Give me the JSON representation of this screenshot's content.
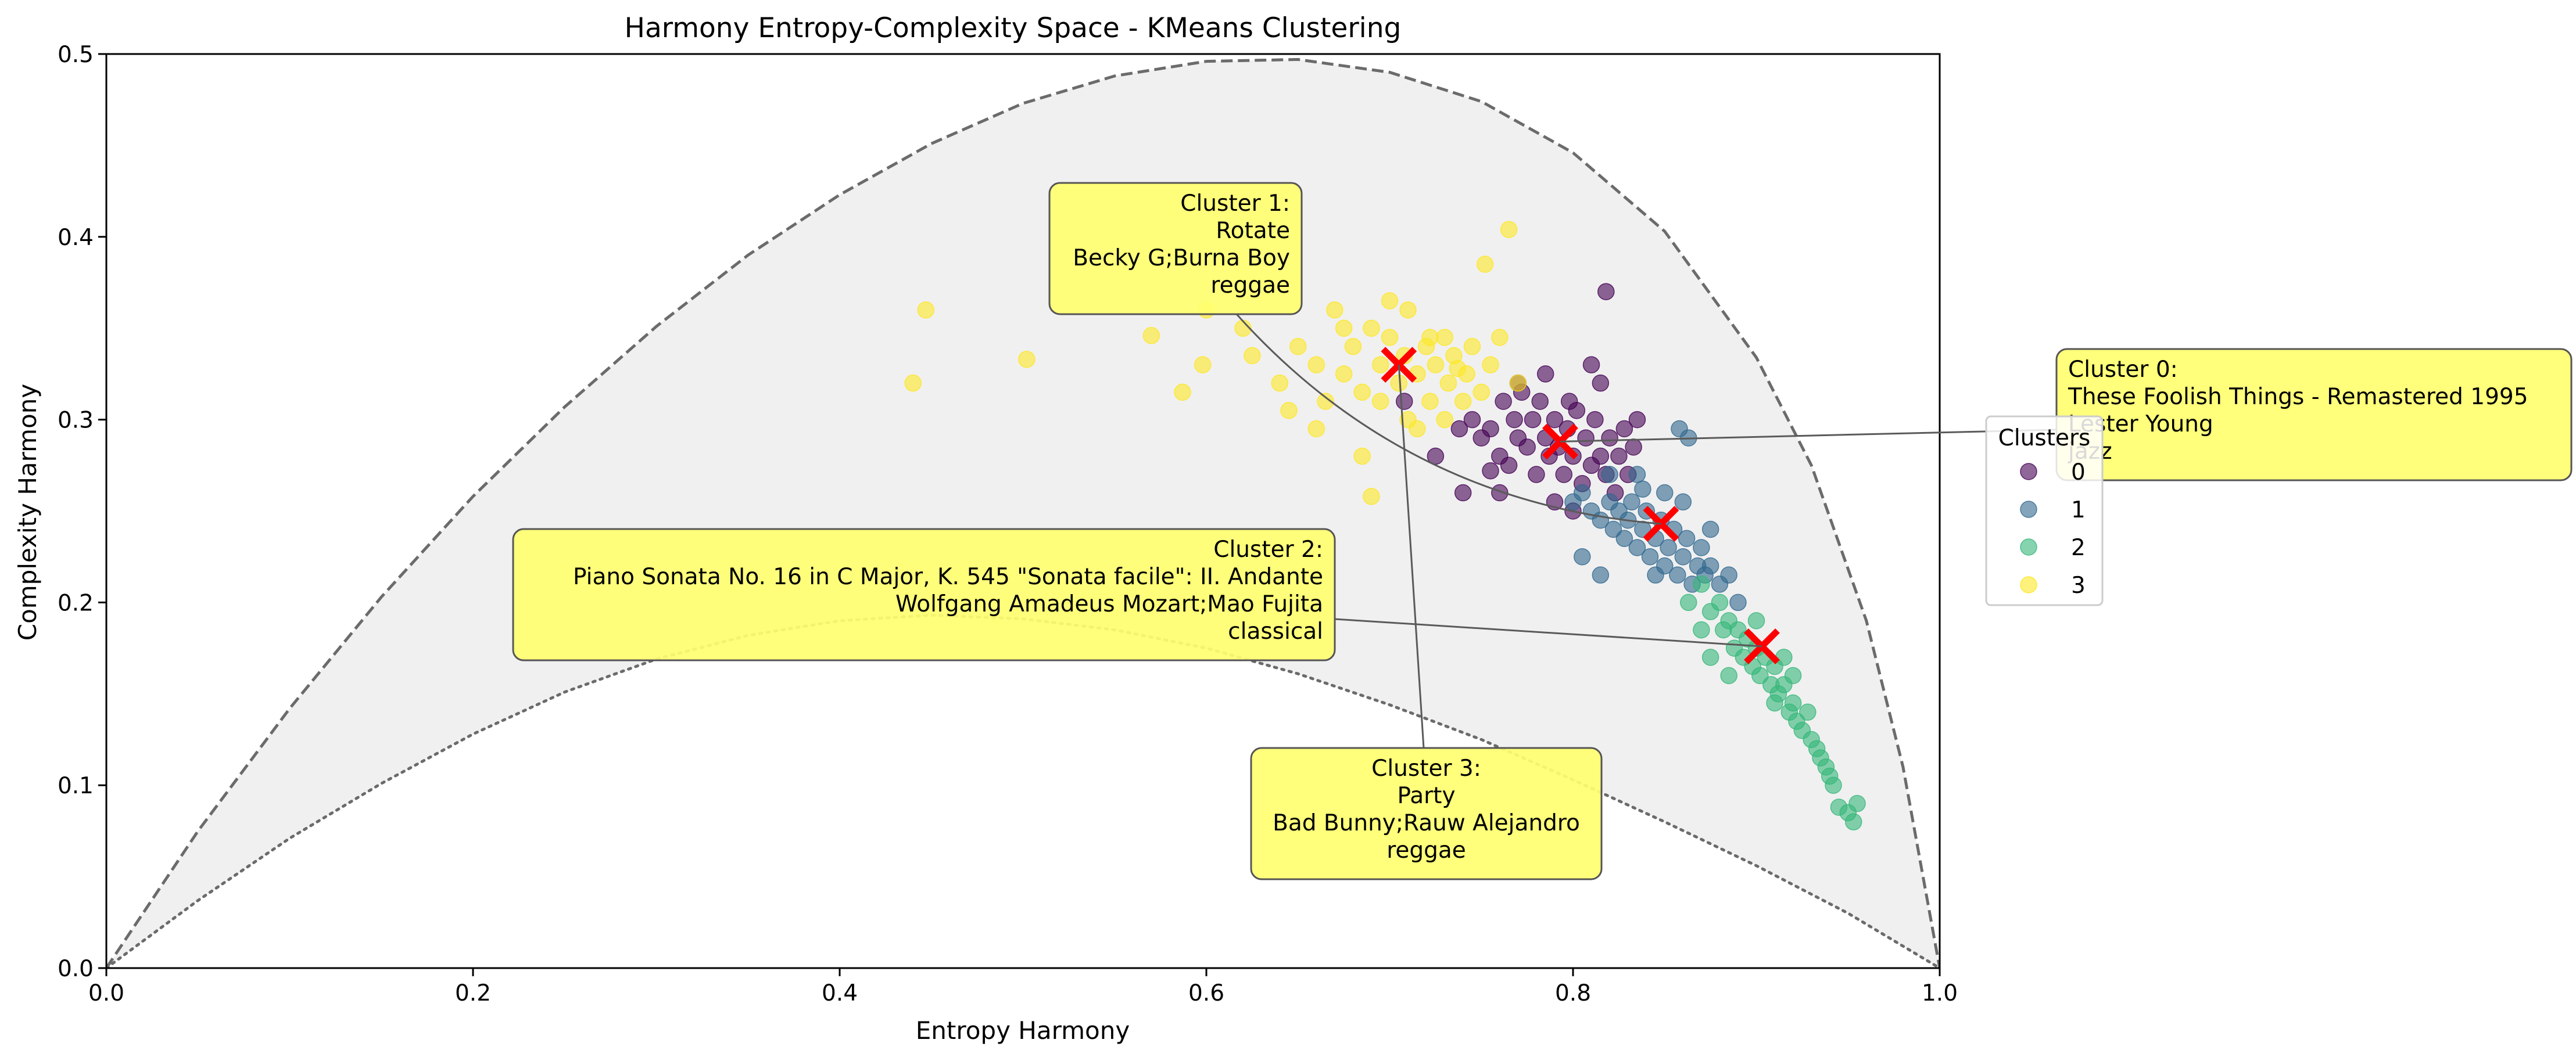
{
  "chart_data": {
    "type": "scatter",
    "title": "Harmony Entropy-Complexity Space - KMeans Clustering",
    "xlabel": "Entropy Harmony",
    "ylabel": "Complexity Harmony",
    "xlim": [
      0.0,
      1.0
    ],
    "ylim": [
      0.0,
      0.5
    ],
    "xticks": [
      "0.0",
      "0.2",
      "0.4",
      "0.6",
      "0.8",
      "1.0"
    ],
    "yticks": [
      "0.0",
      "0.1",
      "0.2",
      "0.3",
      "0.4",
      "0.5"
    ],
    "grid": false,
    "boundaries": {
      "upper": [
        [
          0.0,
          0.0
        ],
        [
          0.05,
          0.075
        ],
        [
          0.1,
          0.142
        ],
        [
          0.15,
          0.203
        ],
        [
          0.2,
          0.258
        ],
        [
          0.25,
          0.307
        ],
        [
          0.3,
          0.351
        ],
        [
          0.35,
          0.39
        ],
        [
          0.4,
          0.423
        ],
        [
          0.45,
          0.451
        ],
        [
          0.5,
          0.473
        ],
        [
          0.55,
          0.488
        ],
        [
          0.6,
          0.496
        ],
        [
          0.65,
          0.497
        ],
        [
          0.7,
          0.49
        ],
        [
          0.75,
          0.474
        ],
        [
          0.8,
          0.446
        ],
        [
          0.85,
          0.403
        ],
        [
          0.9,
          0.334
        ],
        [
          0.93,
          0.275
        ],
        [
          0.96,
          0.19
        ],
        [
          0.98,
          0.11
        ],
        [
          1.0,
          0.0
        ]
      ],
      "lower": [
        [
          0.0,
          0.0
        ],
        [
          0.05,
          0.037
        ],
        [
          0.1,
          0.071
        ],
        [
          0.15,
          0.101
        ],
        [
          0.2,
          0.128
        ],
        [
          0.25,
          0.151
        ],
        [
          0.3,
          0.169
        ],
        [
          0.35,
          0.182
        ],
        [
          0.4,
          0.19
        ],
        [
          0.45,
          0.193
        ],
        [
          0.5,
          0.191
        ],
        [
          0.55,
          0.185
        ],
        [
          0.6,
          0.175
        ],
        [
          0.65,
          0.161
        ],
        [
          0.7,
          0.144
        ],
        [
          0.75,
          0.125
        ],
        [
          0.8,
          0.103
        ],
        [
          0.85,
          0.08
        ],
        [
          0.9,
          0.056
        ],
        [
          0.95,
          0.03
        ],
        [
          1.0,
          0.0
        ]
      ]
    },
    "series": [
      {
        "name": "0",
        "color": "#440154",
        "points": [
          [
            0.708,
            0.31
          ],
          [
            0.725,
            0.28
          ],
          [
            0.738,
            0.295
          ],
          [
            0.745,
            0.3
          ],
          [
            0.75,
            0.29
          ],
          [
            0.755,
            0.295
          ],
          [
            0.76,
            0.28
          ],
          [
            0.762,
            0.31
          ],
          [
            0.765,
            0.275
          ],
          [
            0.768,
            0.3
          ],
          [
            0.77,
            0.29
          ],
          [
            0.772,
            0.315
          ],
          [
            0.775,
            0.285
          ],
          [
            0.778,
            0.3
          ],
          [
            0.78,
            0.27
          ],
          [
            0.782,
            0.31
          ],
          [
            0.785,
            0.29
          ],
          [
            0.787,
            0.28
          ],
          [
            0.79,
            0.3
          ],
          [
            0.792,
            0.285
          ],
          [
            0.795,
            0.27
          ],
          [
            0.797,
            0.295
          ],
          [
            0.8,
            0.28
          ],
          [
            0.802,
            0.305
          ],
          [
            0.805,
            0.265
          ],
          [
            0.807,
            0.29
          ],
          [
            0.81,
            0.275
          ],
          [
            0.812,
            0.3
          ],
          [
            0.815,
            0.28
          ],
          [
            0.818,
            0.27
          ],
          [
            0.82,
            0.29
          ],
          [
            0.823,
            0.26
          ],
          [
            0.825,
            0.28
          ],
          [
            0.828,
            0.295
          ],
          [
            0.83,
            0.27
          ],
          [
            0.833,
            0.285
          ],
          [
            0.785,
            0.325
          ],
          [
            0.81,
            0.33
          ],
          [
            0.818,
            0.37
          ],
          [
            0.835,
            0.3
          ],
          [
            0.74,
            0.26
          ],
          [
            0.76,
            0.26
          ],
          [
            0.8,
            0.25
          ],
          [
            0.77,
            0.32
          ],
          [
            0.798,
            0.31
          ],
          [
            0.755,
            0.272
          ],
          [
            0.815,
            0.32
          ],
          [
            0.79,
            0.255
          ]
        ]
      },
      {
        "name": "1",
        "color": "#31688e",
        "points": [
          [
            0.8,
            0.255
          ],
          [
            0.805,
            0.26
          ],
          [
            0.81,
            0.25
          ],
          [
            0.815,
            0.245
          ],
          [
            0.82,
            0.255
          ],
          [
            0.822,
            0.24
          ],
          [
            0.825,
            0.25
          ],
          [
            0.828,
            0.235
          ],
          [
            0.83,
            0.245
          ],
          [
            0.832,
            0.255
          ],
          [
            0.835,
            0.23
          ],
          [
            0.838,
            0.24
          ],
          [
            0.84,
            0.25
          ],
          [
            0.842,
            0.225
          ],
          [
            0.845,
            0.235
          ],
          [
            0.848,
            0.245
          ],
          [
            0.85,
            0.22
          ],
          [
            0.852,
            0.23
          ],
          [
            0.855,
            0.24
          ],
          [
            0.857,
            0.215
          ],
          [
            0.86,
            0.225
          ],
          [
            0.862,
            0.235
          ],
          [
            0.865,
            0.21
          ],
          [
            0.868,
            0.22
          ],
          [
            0.87,
            0.23
          ],
          [
            0.872,
            0.215
          ],
          [
            0.875,
            0.22
          ],
          [
            0.88,
            0.21
          ],
          [
            0.885,
            0.215
          ],
          [
            0.89,
            0.2
          ],
          [
            0.805,
            0.225
          ],
          [
            0.815,
            0.215
          ],
          [
            0.858,
            0.295
          ],
          [
            0.863,
            0.29
          ],
          [
            0.835,
            0.27
          ],
          [
            0.82,
            0.27
          ],
          [
            0.875,
            0.24
          ],
          [
            0.86,
            0.255
          ],
          [
            0.85,
            0.26
          ],
          [
            0.845,
            0.215
          ],
          [
            0.838,
            0.262
          ]
        ]
      },
      {
        "name": "2",
        "color": "#35b779",
        "points": [
          [
            0.87,
            0.21
          ],
          [
            0.875,
            0.195
          ],
          [
            0.88,
            0.2
          ],
          [
            0.882,
            0.185
          ],
          [
            0.885,
            0.19
          ],
          [
            0.888,
            0.175
          ],
          [
            0.89,
            0.185
          ],
          [
            0.893,
            0.17
          ],
          [
            0.895,
            0.18
          ],
          [
            0.898,
            0.165
          ],
          [
            0.9,
            0.175
          ],
          [
            0.902,
            0.16
          ],
          [
            0.905,
            0.17
          ],
          [
            0.908,
            0.155
          ],
          [
            0.91,
            0.165
          ],
          [
            0.912,
            0.15
          ],
          [
            0.915,
            0.155
          ],
          [
            0.918,
            0.14
          ],
          [
            0.92,
            0.145
          ],
          [
            0.922,
            0.135
          ],
          [
            0.925,
            0.13
          ],
          [
            0.928,
            0.14
          ],
          [
            0.93,
            0.125
          ],
          [
            0.933,
            0.12
          ],
          [
            0.935,
            0.115
          ],
          [
            0.938,
            0.11
          ],
          [
            0.94,
            0.105
          ],
          [
            0.942,
            0.1
          ],
          [
            0.945,
            0.088
          ],
          [
            0.95,
            0.085
          ],
          [
            0.953,
            0.08
          ],
          [
            0.955,
            0.09
          ],
          [
            0.863,
            0.2
          ],
          [
            0.87,
            0.185
          ],
          [
            0.885,
            0.16
          ],
          [
            0.875,
            0.17
          ],
          [
            0.91,
            0.145
          ],
          [
            0.92,
            0.16
          ],
          [
            0.9,
            0.19
          ],
          [
            0.915,
            0.17
          ]
        ]
      },
      {
        "name": "3",
        "color": "#fde725",
        "points": [
          [
            0.44,
            0.32
          ],
          [
            0.447,
            0.36
          ],
          [
            0.502,
            0.333
          ],
          [
            0.57,
            0.346
          ],
          [
            0.587,
            0.315
          ],
          [
            0.598,
            0.33
          ],
          [
            0.6,
            0.36
          ],
          [
            0.62,
            0.35
          ],
          [
            0.625,
            0.335
          ],
          [
            0.64,
            0.32
          ],
          [
            0.65,
            0.34
          ],
          [
            0.66,
            0.33
          ],
          [
            0.665,
            0.31
          ],
          [
            0.67,
            0.36
          ],
          [
            0.675,
            0.325
          ],
          [
            0.68,
            0.34
          ],
          [
            0.685,
            0.315
          ],
          [
            0.69,
            0.35
          ],
          [
            0.695,
            0.33
          ],
          [
            0.7,
            0.345
          ],
          [
            0.705,
            0.32
          ],
          [
            0.708,
            0.335
          ],
          [
            0.71,
            0.36
          ],
          [
            0.715,
            0.325
          ],
          [
            0.72,
            0.34
          ],
          [
            0.722,
            0.31
          ],
          [
            0.725,
            0.33
          ],
          [
            0.73,
            0.345
          ],
          [
            0.732,
            0.32
          ],
          [
            0.735,
            0.335
          ],
          [
            0.74,
            0.31
          ],
          [
            0.742,
            0.325
          ],
          [
            0.745,
            0.34
          ],
          [
            0.75,
            0.315
          ],
          [
            0.755,
            0.33
          ],
          [
            0.76,
            0.345
          ],
          [
            0.71,
            0.3
          ],
          [
            0.715,
            0.295
          ],
          [
            0.685,
            0.28
          ],
          [
            0.69,
            0.258
          ],
          [
            0.752,
            0.385
          ],
          [
            0.765,
            0.404
          ],
          [
            0.7,
            0.365
          ],
          [
            0.675,
            0.35
          ],
          [
            0.66,
            0.295
          ],
          [
            0.645,
            0.305
          ],
          [
            0.73,
            0.3
          ],
          [
            0.77,
            0.32
          ],
          [
            0.722,
            0.345
          ],
          [
            0.737,
            0.328
          ],
          [
            0.695,
            0.31
          ]
        ]
      }
    ],
    "centroids": [
      [
        0.793,
        0.288
      ],
      [
        0.848,
        0.243
      ],
      [
        0.903,
        0.176
      ],
      [
        0.705,
        0.33
      ]
    ],
    "annotations": [
      {
        "lines": [
          "Cluster 0:",
          "These Foolish Things - Remastered 1995",
          "Lester Young",
          "jazz"
        ],
        "target": [
          0.793,
          0.288
        ]
      },
      {
        "lines": [
          "Cluster 1:",
          "Rotate",
          "Becky G;Burna Boy",
          "reggae"
        ],
        "target": [
          0.848,
          0.243
        ]
      },
      {
        "lines": [
          "Cluster 2:",
          "Piano Sonata No. 16 in C Major, K. 545 \"Sonata facile\": II. Andante",
          "Wolfgang Amadeus Mozart;Mao Fujita",
          "classical"
        ],
        "target": [
          0.903,
          0.176
        ]
      },
      {
        "lines": [
          "Cluster 3:",
          "Party",
          "Bad Bunny;Rauw Alejandro",
          "reggae"
        ],
        "target": [
          0.705,
          0.33
        ]
      }
    ],
    "legend": {
      "title": "Clusters",
      "entries": [
        "0",
        "1",
        "2",
        "3"
      ],
      "placement": "right of plot"
    }
  }
}
